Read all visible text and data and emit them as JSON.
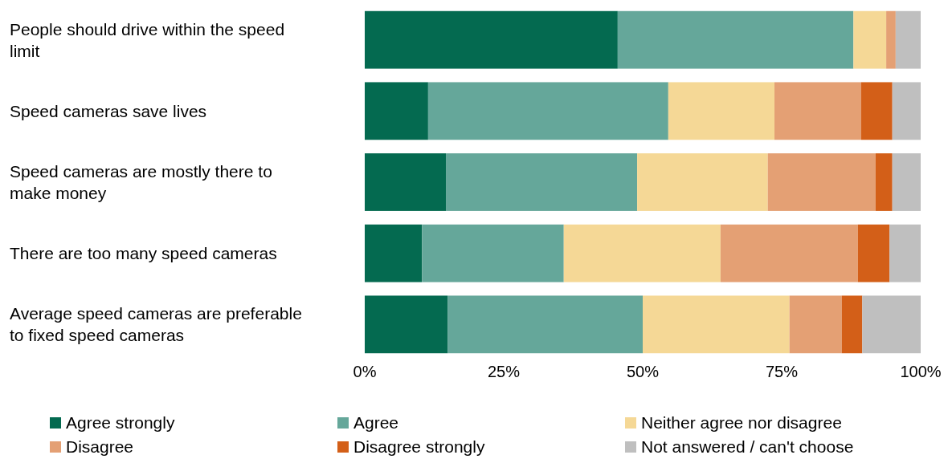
{
  "chart_data": {
    "type": "bar",
    "orientation": "horizontal",
    "stacked": true,
    "categories": [
      "People should drive within the speed limit",
      "Speed cameras save lives",
      "Speed cameras are mostly there to make money",
      "There are too many speed cameras",
      "Average speed cameras are preferable to fixed speed cameras"
    ],
    "series": [
      {
        "name": "Agree strongly",
        "color": "#046a50",
        "values": [
          45.5,
          11.4,
          14.6,
          10.3,
          14.9
        ]
      },
      {
        "name": "Agree",
        "color": "#65a79a",
        "values": [
          42.4,
          43.2,
          34.4,
          25.5,
          35.1
        ]
      },
      {
        "name": "Neither agree nor disagree",
        "color": "#f5d896",
        "values": [
          5.9,
          19.1,
          23.5,
          28.2,
          26.4
        ]
      },
      {
        "name": "Disagree",
        "color": "#e4a074",
        "values": [
          1.7,
          15.6,
          19.4,
          24.7,
          9.4
        ]
      },
      {
        "name": "Disagree strongly",
        "color": "#d35f18",
        "values": [
          0,
          5.6,
          3.0,
          5.7,
          3.7
        ]
      },
      {
        "name": "Not answered / can't choose",
        "color": "#bfbfbf",
        "values": [
          4.5,
          5.1,
          5.1,
          5.6,
          10.5
        ]
      }
    ],
    "xlim": [
      0,
      100
    ],
    "xticks": [
      {
        "value": 0,
        "label": "0%"
      },
      {
        "value": 25,
        "label": "25%"
      },
      {
        "value": 50,
        "label": "50%"
      },
      {
        "value": 75,
        "label": "75%"
      },
      {
        "value": 100,
        "label": "100%"
      }
    ],
    "grid": false,
    "legend": "bottom"
  }
}
